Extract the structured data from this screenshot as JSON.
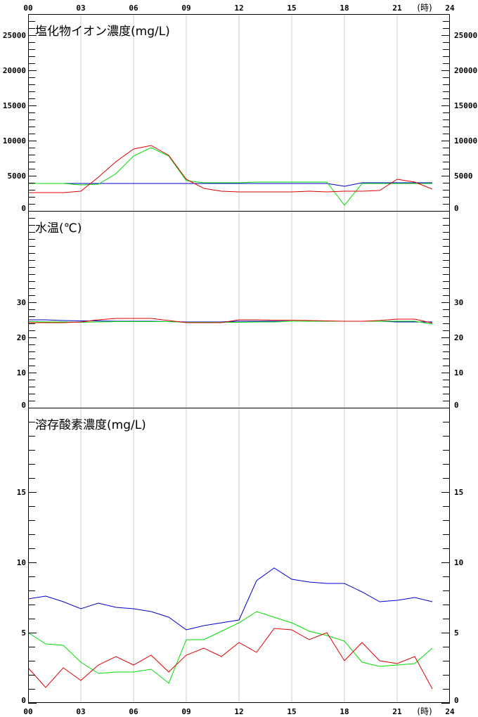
{
  "chart_data": {
    "type": "line",
    "x_ticks": [
      "00",
      "03",
      "06",
      "09",
      "12",
      "15",
      "18",
      "21",
      "24"
    ],
    "x_unit": "(時)",
    "x": [
      0,
      1,
      2,
      3,
      4,
      5,
      6,
      7,
      8,
      9,
      10,
      11,
      12,
      13,
      14,
      15,
      16,
      17,
      18,
      19,
      20,
      21,
      22,
      23
    ],
    "xlim": [
      0,
      24
    ],
    "series_colors": [
      "#0000cc",
      "#00dd00",
      "#dd0000"
    ],
    "panels": [
      {
        "title": "塩化物イオン濃度(mg/L)",
        "ylim": [
          0,
          28000
        ],
        "y_ticks": [
          0,
          5000,
          10000,
          15000,
          20000,
          25000
        ],
        "minor_step": 1000,
        "series": [
          {
            "color": "#0000cc",
            "values": [
              3900,
              3900,
              3900,
              3900,
              3900,
              3900,
              3900,
              3900,
              3900,
              3900,
              3900,
              3900,
              3900,
              3900,
              3900,
              3900,
              3900,
              3900,
              3500,
              4000,
              4000,
              4000,
              4000,
              4000
            ]
          },
          {
            "color": "#00dd00",
            "values": [
              3900,
              3900,
              3900,
              3700,
              3800,
              5300,
              7800,
              9000,
              7800,
              4300,
              4000,
              4000,
              4000,
              4100,
              4100,
              4100,
              4100,
              4100,
              800,
              3900,
              3900,
              3900,
              3900,
              3900
            ]
          },
          {
            "color": "#dd0000",
            "values": [
              2600,
              2600,
              2600,
              2800,
              4800,
              7000,
              8800,
              9300,
              7900,
              4500,
              3200,
              2800,
              2700,
              2700,
              2700,
              2700,
              2800,
              2700,
              2800,
              2800,
              2900,
              4500,
              4100,
              3100
            ]
          }
        ]
      },
      {
        "title": "水温(℃)",
        "ylim": [
          0,
          56
        ],
        "y_ticks": [
          0,
          10,
          20,
          30
        ],
        "minor_step": 2,
        "series": [
          {
            "color": "#0000cc",
            "values": [
              25.0,
              25.0,
              24.8,
              24.7,
              24.7,
              24.6,
              24.6,
              24.6,
              24.5,
              24.4,
              24.4,
              24.4,
              24.6,
              24.6,
              24.6,
              24.6,
              24.6,
              24.6,
              24.6,
              24.6,
              24.6,
              24.4,
              24.4,
              24.4
            ]
          },
          {
            "color": "#00dd00",
            "values": [
              24.5,
              24.4,
              24.4,
              24.3,
              24.4,
              24.5,
              24.5,
              24.5,
              24.5,
              24.3,
              24.3,
              24.3,
              24.3,
              24.4,
              24.4,
              24.6,
              24.6,
              24.6,
              24.6,
              24.6,
              24.6,
              24.6,
              24.6,
              23.8
            ]
          },
          {
            "color": "#dd0000",
            "values": [
              24.2,
              24.2,
              24.2,
              24.4,
              25.0,
              25.4,
              25.4,
              25.4,
              24.8,
              24.2,
              24.2,
              24.2,
              25.0,
              25.0,
              24.9,
              24.9,
              24.8,
              24.7,
              24.6,
              24.6,
              24.8,
              25.2,
              25.2,
              24.1
            ]
          }
        ]
      },
      {
        "title": "溶存酸素濃度(mg/L)",
        "ylim": [
          0,
          21
        ],
        "y_ticks": [
          0,
          5,
          10,
          15
        ],
        "minor_step": 1,
        "series": [
          {
            "color": "#0000cc",
            "values": [
              7.4,
              7.6,
              7.2,
              6.7,
              7.1,
              6.8,
              6.7,
              6.5,
              6.1,
              5.2,
              5.5,
              5.7,
              5.9,
              8.7,
              9.6,
              8.8,
              8.6,
              8.5,
              8.5,
              7.9,
              7.2,
              7.3,
              7.5,
              7.2
            ]
          },
          {
            "color": "#00dd00",
            "values": [
              5.0,
              4.2,
              4.1,
              2.9,
              2.1,
              2.2,
              2.2,
              2.4,
              1.4,
              4.5,
              4.5,
              5.1,
              5.7,
              6.5,
              6.1,
              5.7,
              5.1,
              4.8,
              4.4,
              2.9,
              2.6,
              2.7,
              2.8,
              3.9
            ]
          },
          {
            "color": "#dd0000",
            "values": [
              2.5,
              1.1,
              2.5,
              1.6,
              2.7,
              3.3,
              2.7,
              3.4,
              2.2,
              3.4,
              3.9,
              3.3,
              4.3,
              3.6,
              5.3,
              5.2,
              4.5,
              5.0,
              3.0,
              4.3,
              3.0,
              2.8,
              3.3,
              1.0
            ]
          }
        ]
      }
    ]
  }
}
